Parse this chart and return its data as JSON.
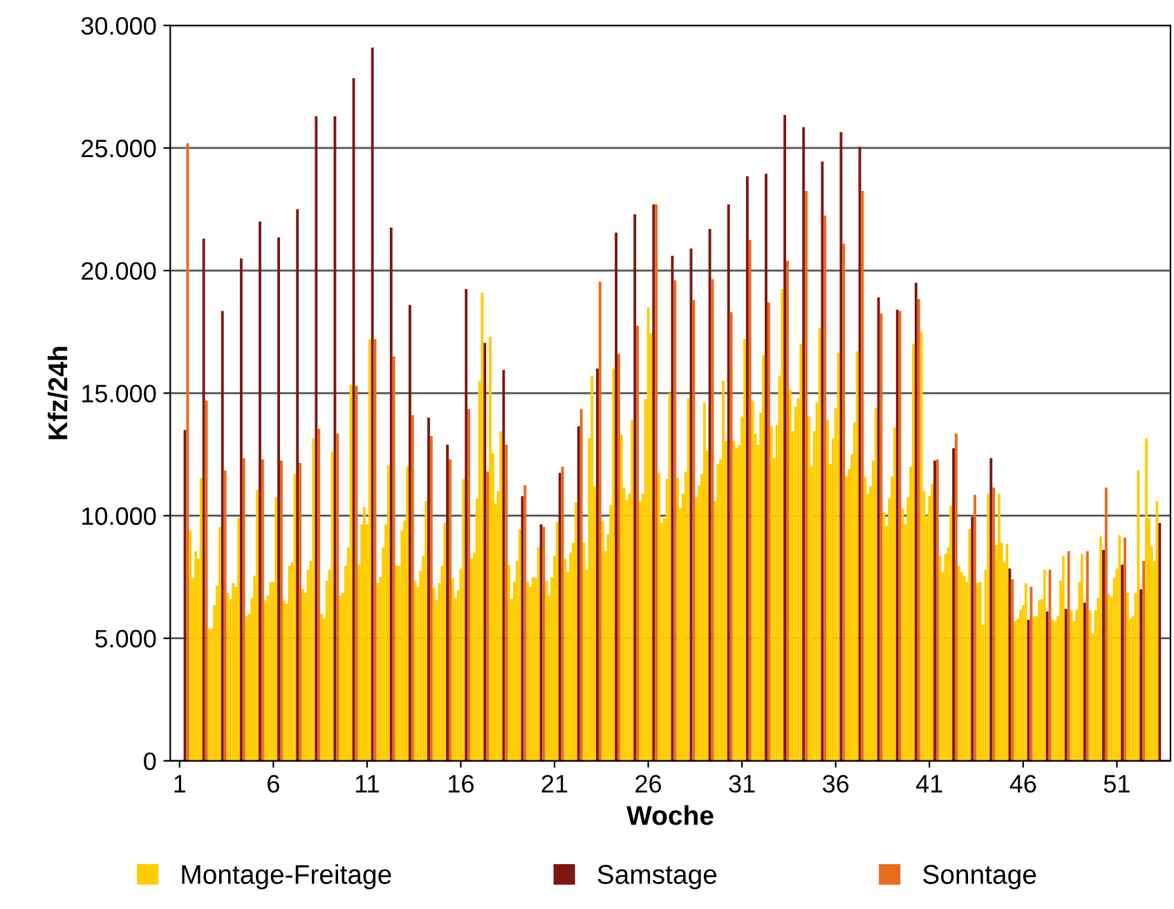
{
  "chart_data": {
    "type": "bar",
    "xlabel": "Woche",
    "ylabel": "Kfz/24h",
    "xlim": [
      0.5,
      53.86
    ],
    "xticks": [
      1,
      6,
      11,
      16,
      21,
      26,
      31,
      36,
      41,
      46,
      51
    ],
    "ylim": [
      0,
      30000
    ],
    "yticks": [
      0,
      {
        "value": 5000,
        "label": "5.000"
      },
      {
        "value": 10000,
        "label": "10.000"
      },
      {
        "value": 15000,
        "label": "15.000"
      },
      {
        "value": 20000,
        "label": "20.000"
      },
      {
        "value": 25000,
        "label": "25.000"
      },
      {
        "value": 30000,
        "label": "30.000"
      }
    ],
    "grid": "y",
    "legend": "bottom",
    "series": [
      {
        "name": "Montage-Freitage",
        "color": "#ffcc00",
        "x": [
          1.571,
          1.714,
          1.857,
          2,
          2.143,
          2.571,
          2.714,
          2.857,
          3,
          3.143,
          3.571,
          3.714,
          3.857,
          4,
          4.143,
          4.571,
          4.714,
          4.857,
          5,
          5.143,
          5.571,
          5.714,
          5.857,
          6,
          6.143,
          6.571,
          6.714,
          6.857,
          7,
          7.143,
          7.571,
          7.714,
          7.857,
          8,
          8.143,
          8.571,
          8.714,
          8.857,
          9,
          9.143,
          9.571,
          9.714,
          9.857,
          10,
          10.143,
          10.571,
          10.714,
          10.857,
          11,
          11.143,
          11.571,
          11.714,
          11.857,
          12,
          12.143,
          12.571,
          12.714,
          12.857,
          13,
          13.143,
          13.571,
          13.714,
          13.857,
          14,
          14.143,
          14.571,
          14.714,
          14.857,
          15,
          15.143,
          15.571,
          15.714,
          15.857,
          16,
          16.143,
          16.571,
          16.714,
          16.857,
          17,
          17.143,
          17.571,
          17.714,
          17.857,
          18,
          18.143,
          18.571,
          18.714,
          18.857,
          19,
          19.143,
          19.571,
          19.714,
          19.857,
          20,
          20.143,
          20.571,
          20.714,
          20.857,
          21,
          21.143,
          21.571,
          21.714,
          21.857,
          22,
          22.143,
          22.571,
          22.714,
          22.857,
          23,
          23.143,
          23.571,
          23.714,
          23.857,
          24,
          24.143,
          24.571,
          24.714,
          24.857,
          25,
          25.143,
          25.571,
          25.714,
          25.857,
          26,
          26.143,
          26.571,
          26.714,
          26.857,
          27,
          27.143,
          27.571,
          27.714,
          27.857,
          28,
          28.143,
          28.571,
          28.714,
          28.857,
          29,
          29.143,
          29.571,
          29.714,
          29.857,
          30,
          30.143,
          30.571,
          30.714,
          30.857,
          31,
          31.143,
          31.571,
          31.714,
          31.857,
          32,
          32.143,
          32.571,
          32.714,
          32.857,
          33,
          33.143,
          33.571,
          33.714,
          33.857,
          34,
          34.143,
          34.571,
          34.714,
          34.857,
          35,
          35.143,
          35.571,
          35.714,
          35.857,
          36,
          36.143,
          36.571,
          36.714,
          36.857,
          37,
          37.143,
          37.571,
          37.714,
          37.857,
          38,
          38.143,
          38.571,
          38.714,
          38.857,
          39,
          39.143,
          39.571,
          39.714,
          39.857,
          40,
          40.143,
          40.571,
          40.714,
          40.857,
          41,
          41.143,
          41.571,
          41.714,
          41.857,
          42,
          42.143,
          42.571,
          42.714,
          42.857,
          43,
          43.143,
          43.571,
          43.714,
          43.857,
          44,
          44.143,
          44.571,
          44.714,
          44.857,
          45,
          45.143,
          45.571,
          45.714,
          45.857,
          46,
          46.143,
          46.571,
          46.714,
          46.857,
          47,
          47.143,
          47.571,
          47.714,
          47.857,
          48,
          48.143,
          48.571,
          48.714,
          48.857,
          49,
          49.143,
          49.571,
          49.714,
          49.857,
          50,
          50.143,
          50.571,
          50.714,
          50.857,
          51,
          51.143,
          51.571,
          51.714,
          51.857,
          52,
          52.143,
          52.571,
          52.714,
          52.857,
          53,
          53.143
        ],
        "values": [
          9400,
          7450,
          8550,
          8250,
          11550,
          5400,
          5400,
          6350,
          7150,
          9550,
          6850,
          6600,
          7250,
          7100,
          9900,
          5900,
          6000,
          6650,
          7550,
          11050,
          6550,
          6750,
          7300,
          7300,
          10750,
          6550,
          6400,
          7950,
          8100,
          11700,
          7000,
          6850,
          7800,
          8150,
          13150,
          6000,
          5800,
          7350,
          7800,
          12600,
          6750,
          6850,
          7950,
          8700,
          15350,
          8000,
          9650,
          10350,
          9650,
          17200,
          7250,
          7500,
          8700,
          9650,
          12050,
          7950,
          7950,
          9400,
          9800,
          12000,
          7350,
          7100,
          7750,
          8350,
          10600,
          7050,
          6550,
          7250,
          7950,
          9700,
          7450,
          6650,
          6950,
          7850,
          11500,
          8250,
          8500,
          10700,
          15500,
          19100,
          17300,
          12550,
          10500,
          11000,
          13450,
          8000,
          6600,
          7300,
          8150,
          9450,
          7300,
          7100,
          7500,
          7450,
          8700,
          7350,
          6750,
          7500,
          8350,
          9750,
          8250,
          7700,
          8500,
          8900,
          10550,
          8900,
          7800,
          13150,
          15700,
          11200,
          9800,
          8550,
          9250,
          10450,
          16000,
          13300,
          11150,
          10650,
          10900,
          13900,
          10600,
          10900,
          14750,
          18500,
          17450,
          11750,
          9700,
          9900,
          11500,
          15000,
          11550,
          10300,
          10900,
          11800,
          14800,
          10750,
          11250,
          11700,
          14600,
          12650,
          10600,
          12100,
          12300,
          15500,
          13050,
          13050,
          12750,
          12900,
          14050,
          17200,
          14700,
          13350,
          12900,
          14200,
          16550,
          13650,
          12350,
          13700,
          15700,
          19250,
          15150,
          13450,
          14450,
          14800,
          17000,
          14050,
          12000,
          13450,
          14600,
          17650,
          13900,
          12100,
          13150,
          14400,
          16650,
          11600,
          11900,
          12500,
          13800,
          16700,
          11600,
          10900,
          11200,
          12250,
          14400,
          10150,
          9600,
          10700,
          11600,
          13600,
          10300,
          9650,
          10750,
          12000,
          17000,
          17500,
          11000,
          10000,
          10800,
          11300,
          8350,
          7700,
          8450,
          8700,
          10400,
          7950,
          7700,
          7550,
          7300,
          9450,
          7250,
          7300,
          5550,
          7800,
          10900,
          8800,
          10900,
          8900,
          8100,
          8850,
          5700,
          5800,
          6150,
          6350,
          7250,
          5900,
          5900,
          6550,
          6600,
          7800,
          5750,
          5700,
          5900,
          7350,
          8350,
          6150,
          5700,
          6150,
          7300,
          8450,
          6150,
          5200,
          6150,
          6650,
          9150,
          6800,
          6700,
          7450,
          7850,
          9200,
          6850,
          5800,
          5900,
          6850,
          11850,
          13150,
          9900,
          8750,
          8150,
          10600
        ]
      },
      {
        "name": "Samstage",
        "color": "#7f1711",
        "x": [
          1.286,
          2.286,
          3.286,
          4.286,
          5.286,
          6.286,
          7.286,
          8.286,
          9.286,
          10.286,
          11.286,
          12.286,
          13.286,
          14.286,
          15.286,
          16.286,
          17.286,
          18.286,
          19.286,
          20.286,
          21.286,
          22.286,
          23.286,
          24.286,
          25.286,
          26.286,
          27.286,
          28.286,
          29.286,
          30.286,
          31.286,
          32.286,
          33.286,
          34.286,
          35.286,
          36.286,
          37.286,
          38.286,
          39.286,
          40.286,
          41.286,
          42.286,
          43.286,
          44.286,
          45.286,
          46.286,
          47.286,
          48.286,
          49.286,
          50.286,
          51.286,
          52.286,
          53.286
        ],
        "values": [
          13500,
          21300,
          18350,
          20500,
          22000,
          21350,
          22500,
          26300,
          26300,
          27850,
          29100,
          21750,
          18600,
          14000,
          12900,
          19250,
          17050,
          15950,
          10800,
          9650,
          11750,
          13650,
          16000,
          21550,
          22300,
          22700,
          20600,
          20900,
          21700,
          22700,
          23850,
          23950,
          26350,
          25850,
          24450,
          25650,
          25050,
          18900,
          18400,
          19500,
          12250,
          12750,
          9950,
          12350,
          7850,
          5750,
          6100,
          6200,
          6450,
          8600,
          8000,
          7000,
          9700
        ]
      },
      {
        "name": "Sonntage",
        "color": "#ea6a1e",
        "x": [
          1.429,
          2.429,
          3.429,
          4.429,
          5.429,
          6.429,
          7.429,
          8.429,
          9.429,
          10.429,
          11.429,
          12.429,
          13.429,
          14.429,
          15.429,
          16.429,
          17.429,
          18.429,
          19.429,
          20.429,
          21.429,
          22.429,
          23.429,
          24.429,
          25.429,
          26.429,
          27.429,
          28.429,
          29.429,
          30.429,
          31.429,
          32.429,
          33.429,
          34.429,
          35.429,
          36.429,
          37.429,
          38.429,
          39.429,
          40.429,
          41.429,
          42.429,
          43.429,
          44.429,
          45.429,
          46.429,
          47.429,
          48.429,
          49.429,
          50.429,
          51.429,
          52.429
        ],
        "values": [
          25200,
          14700,
          11850,
          12350,
          12300,
          12250,
          12150,
          13550,
          13350,
          15300,
          17200,
          16500,
          14100,
          13250,
          12300,
          14350,
          11800,
          12900,
          11250,
          9550,
          12000,
          14350,
          19550,
          16600,
          17750,
          22700,
          19600,
          18800,
          19650,
          18300,
          21250,
          18700,
          20400,
          23250,
          22250,
          21100,
          23250,
          18250,
          18350,
          18850,
          12300,
          13350,
          10850,
          11150,
          7400,
          7100,
          7800,
          8550,
          8550,
          11150,
          9100,
          8150
        ]
      }
    ]
  }
}
